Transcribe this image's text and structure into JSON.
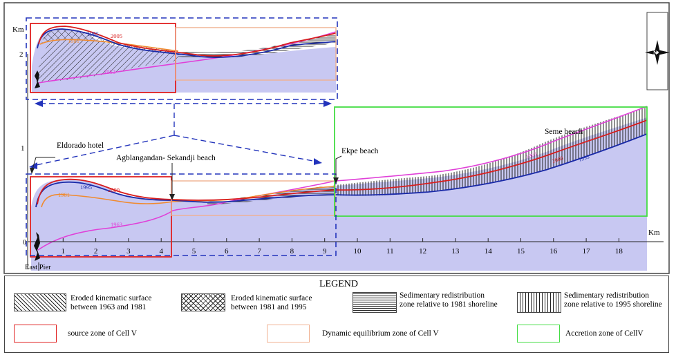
{
  "colors": {
    "area_fill": "#c8c8f2",
    "line_1963": "#e040d8",
    "line_1981": "#f08a2e",
    "line_1995": "#1a2aa8",
    "line_2000": "#d81e1e",
    "source_zone": "#e02020",
    "equilibrium_zone": "#f0b090",
    "accretion_zone": "#44dd44",
    "dashed_frame": "#2233bb"
  },
  "labels": {
    "km_top": "Km",
    "km_right": "Km",
    "y_tick_2": "2",
    "y_tick_1": "1",
    "y_tick_0": "0",
    "eldorado": "Eldorado hotel",
    "agblangandan": "Agblangandan- Sekandji beach",
    "ekpe": "Ekpe beach",
    "seme": "Seme beach",
    "east_pier": "East Pier",
    "compass_n": "N"
  },
  "x_ticks": [
    "1",
    "2",
    "3",
    "4",
    "5",
    "6",
    "7",
    "8",
    "9",
    "10",
    "11",
    "12",
    "13",
    "14",
    "15",
    "16",
    "17",
    "18"
  ],
  "inset_year_labels": {
    "y1995": "1995",
    "y2005": "2005",
    "y1981": "1981",
    "y1963": "1963"
  },
  "main_year_labels": {
    "y1995": "1995",
    "y2000": "2000",
    "y1981": "1981",
    "y1963": "1963",
    "seme_1963": "1963",
    "seme_2000": "2000",
    "seme_1995": "1995"
  },
  "legend": {
    "title": "LEGEND",
    "eroded_1963_1981": [
      "Eroded kinematic surface",
      "between 1963 and 1981"
    ],
    "eroded_1981_1995": [
      "Eroded kinematic surface",
      "between 1981 and 1995"
    ],
    "sed_1981": [
      "Sedimentary redistribution",
      "zone relative to 1981 shoreline"
    ],
    "sed_1995": [
      "Sedimentary redistribution",
      "zone relative to 1995 shoreline"
    ],
    "source_zone": "source zone of Cell V",
    "equilibrium_zone": "Dynamic equilibrium zone of Cell V",
    "accretion_zone": "Accretion zone of CellV"
  }
}
